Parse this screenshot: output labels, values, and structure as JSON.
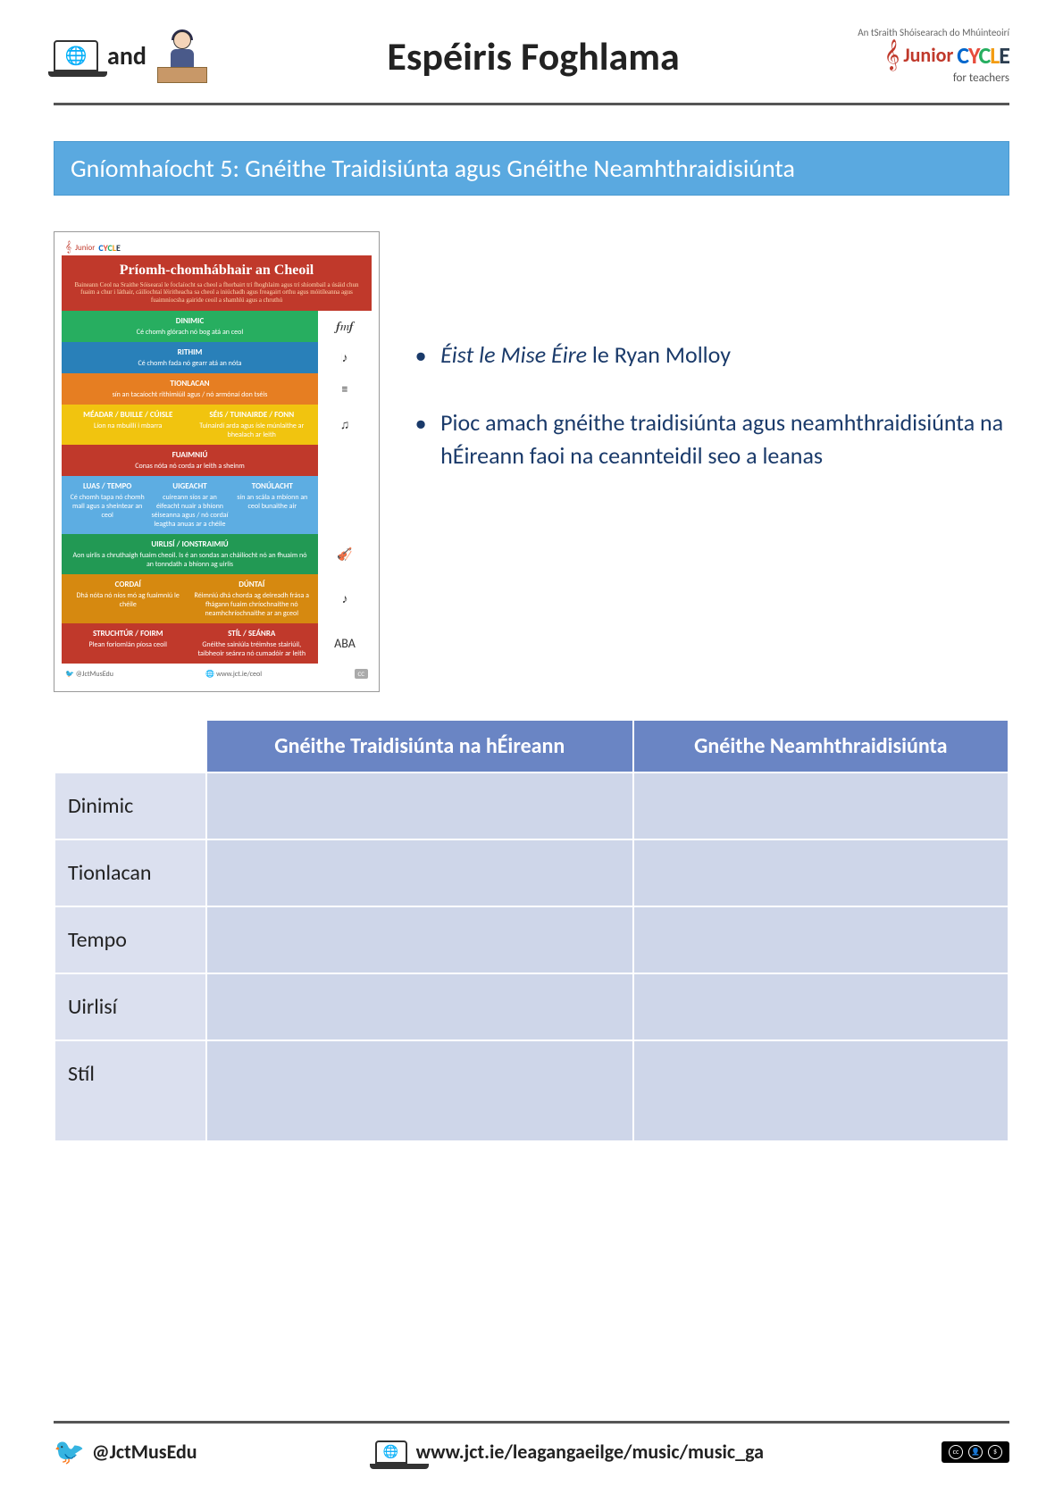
{
  "header": {
    "and_label": "and",
    "title": "Espéiris Foghlama",
    "logo": {
      "tagline": "An tSraith Shóisearach do Mhúinteoirí",
      "junior": "Junior",
      "cycle": "CYCLE",
      "sub": "for teachers"
    }
  },
  "activity_banner": "Gníomhaíocht 5: Gnéithe Traidisiúnta agus Gnéithe Neamhthraidisiúnta",
  "poster": {
    "title": "Príomh-chomhábhair an Cheoil",
    "subtitle": "Baineann Ceol na Sraithe Sóisearaí le foclaíocht sa cheol a fhorbairt trí fhoghlaim agus trí shiombail a úsáid chun fuaim a chur i láthair, cáilíochtaí léiritheacha sa cheol a iniúchadh agus freagairt orthu agus móitíleanna agus fuaimníocsha gairide ceoil a shamhlú agus a chruthú",
    "rows": [
      {
        "color": "#27ae60",
        "name": "DINIMIC",
        "desc": "Cé chomh glórach nó bog atá an ceol",
        "icon": "𝆑𝆐𝆑"
      },
      {
        "color": "#2980b9",
        "name": "RITHIM",
        "desc": "Cé chomh fada nó gearr atá an nóta",
        "icon": "♩♪"
      },
      {
        "color": "#e67e22",
        "name": "TIONLACAN",
        "desc": "sín an tacaíocht rithimiúil agus / nó armónaí don tséis",
        "icon": "≡"
      },
      {
        "color": "#f1c40f",
        "name": "MÉADAR / BUILLE / CÚISLE",
        "desc": "Líon na mbuillí i mbarra",
        "name2": "SÉIS / TUINAIRDE / FONN",
        "desc2": "Tuinairdí arda agus ísle múnlaithe ar bhealach ar leith",
        "icon": "♫"
      },
      {
        "color": "#c0392b",
        "name": "FUAIMNIÚ",
        "desc": "Conas nóta nó corda ar leith a sheinm",
        "icon": ""
      },
      {
        "color": "#5dade2",
        "name": "LUAS / TEMPO",
        "desc": "Cé chomh tapa nó chomh mall agus a sheintear an ceol",
        "name2": "UIGEACHT",
        "desc2": "cuireann síos ar an éifeacht nuair a bhíonn séiseanna agus / nó cordaí leagtha anuas ar a chéile",
        "name3": "TONÚLACHT",
        "desc3": "sín an scála a mbíonn an ceol bunaithe air",
        "icon": ""
      },
      {
        "color": "#229954",
        "name": "UIRLISÍ / IONSTRAIMIÚ",
        "desc": "Aon uirlis a chruthaigh fuaim cheoil. Is é an sondas an cháilíocht nó an fhuaim nó an tonndath a bhíonn ag uirlis",
        "icon": "🎻"
      },
      {
        "color": "#d68910",
        "name": "CORDAÍ",
        "desc": "Dhá nóta nó níos mó ag fuaimniú le chéile",
        "name2": "DÚNTAÍ",
        "desc2": "Réimniú dhá chorda ag deireadh frása a fhágann fuaim chríochnaithe nó neamhchríochnaithe ar an gceol",
        "icon": "♪"
      },
      {
        "color": "#c0392b",
        "name": "STRUCHTÚR / FOIRM",
        "desc": "Plean foriomlán píosa ceoil",
        "name2": "STÍL / SEÁNRA",
        "desc2": "Gnéithe sainiúla tréimhse stairiúil, taibheoir seánra nó cumadóir ar leith",
        "icon": "ABA"
      }
    ],
    "footer_handle": "@JctMusEdu",
    "footer_url": "www.jct.ie/ceol"
  },
  "bullets": [
    {
      "prefix_italic": "Éist le Mise Éire",
      "rest": " le Ryan Molloy"
    },
    {
      "text": "Pioc amach gnéithe traidisiúnta agus neamhthraidisiúnta na hÉireann faoi na ceannteidil seo a leanas"
    }
  ],
  "table": {
    "header_col1": "Gnéithe Traidisiúnta na hÉireann",
    "header_col2": "Gnéithe Neamhthraidisiúnta",
    "rows": [
      "Dinimic",
      "Tionlacan",
      "Tempo",
      "Uirlisí",
      "Stíl"
    ],
    "colors": {
      "header_bg": "#6a85c4",
      "label_bg": "#dbe0ef",
      "cell_bg": "#ced6e9",
      "header_text": "#ffffff"
    }
  },
  "footer": {
    "handle": "@JctMusEdu",
    "url": "www.jct.ie/leagangaeilge/music/music_ga",
    "cc": "CC BY NC"
  }
}
